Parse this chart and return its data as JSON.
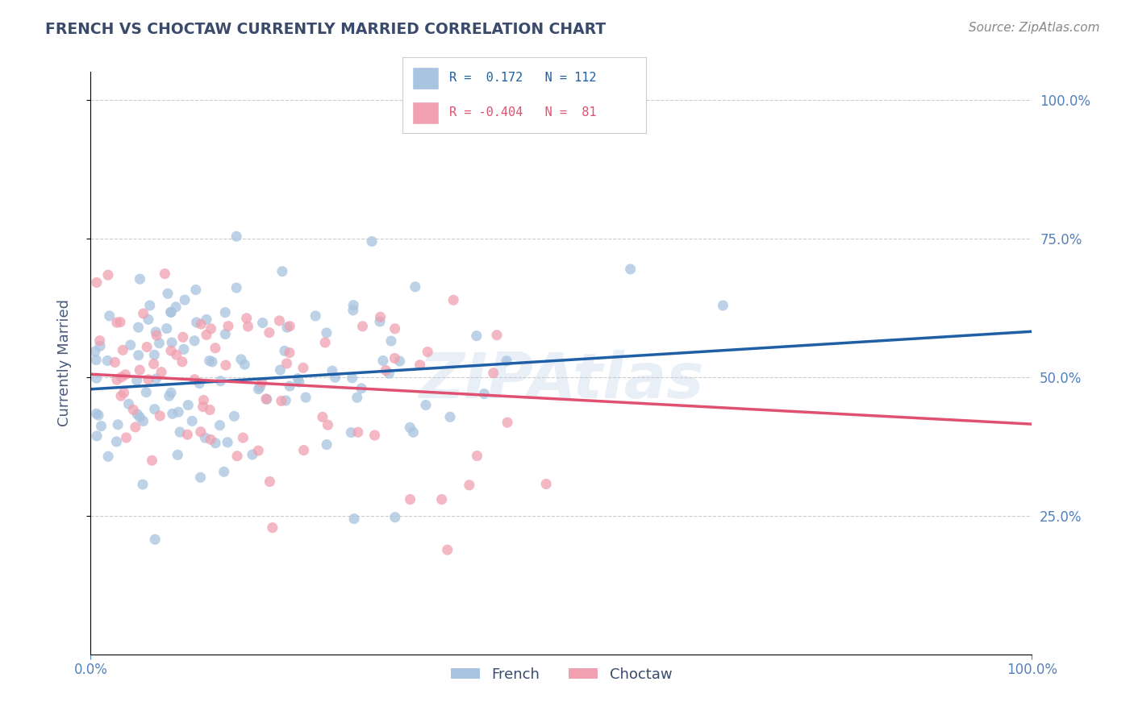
{
  "title": "FRENCH VS CHOCTAW CURRENTLY MARRIED CORRELATION CHART",
  "source": "Source: ZipAtlas.com",
  "ylabel": "Currently Married",
  "xlabel": "",
  "legend_french": "French",
  "legend_choctaw": "Choctaw",
  "french_color": "#a8c4e0",
  "choctaw_color": "#f0a0b0",
  "french_line_color": "#1f5fa6",
  "choctaw_line_color": "#e05070",
  "title_color": "#3a4a6b",
  "axis_label_color": "#4a5a7a",
  "tick_color": "#5580bb",
  "watermark": "ZIPAtlas",
  "r_french": 0.172,
  "r_choctaw": -0.404,
  "n_french": 112,
  "n_choctaw": 81,
  "xlim": [
    0.0,
    1.0
  ],
  "ylim": [
    0.0,
    1.05
  ],
  "background_color": "#ffffff",
  "grid_color": "#cccccc",
  "french_line_start_y": 0.478,
  "french_line_end_y": 0.582,
  "choctaw_line_start_y": 0.505,
  "choctaw_line_end_y": 0.415
}
